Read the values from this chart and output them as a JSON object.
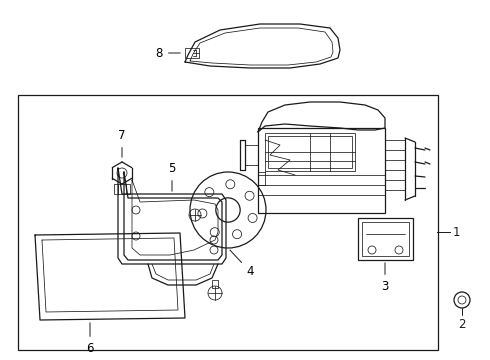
{
  "background_color": "#ffffff",
  "line_color": "#1a1a1a",
  "lw": 0.9,
  "tlw": 0.55,
  "label_fs": 8.5,
  "fig_w": 4.9,
  "fig_h": 3.6,
  "dpi": 100
}
